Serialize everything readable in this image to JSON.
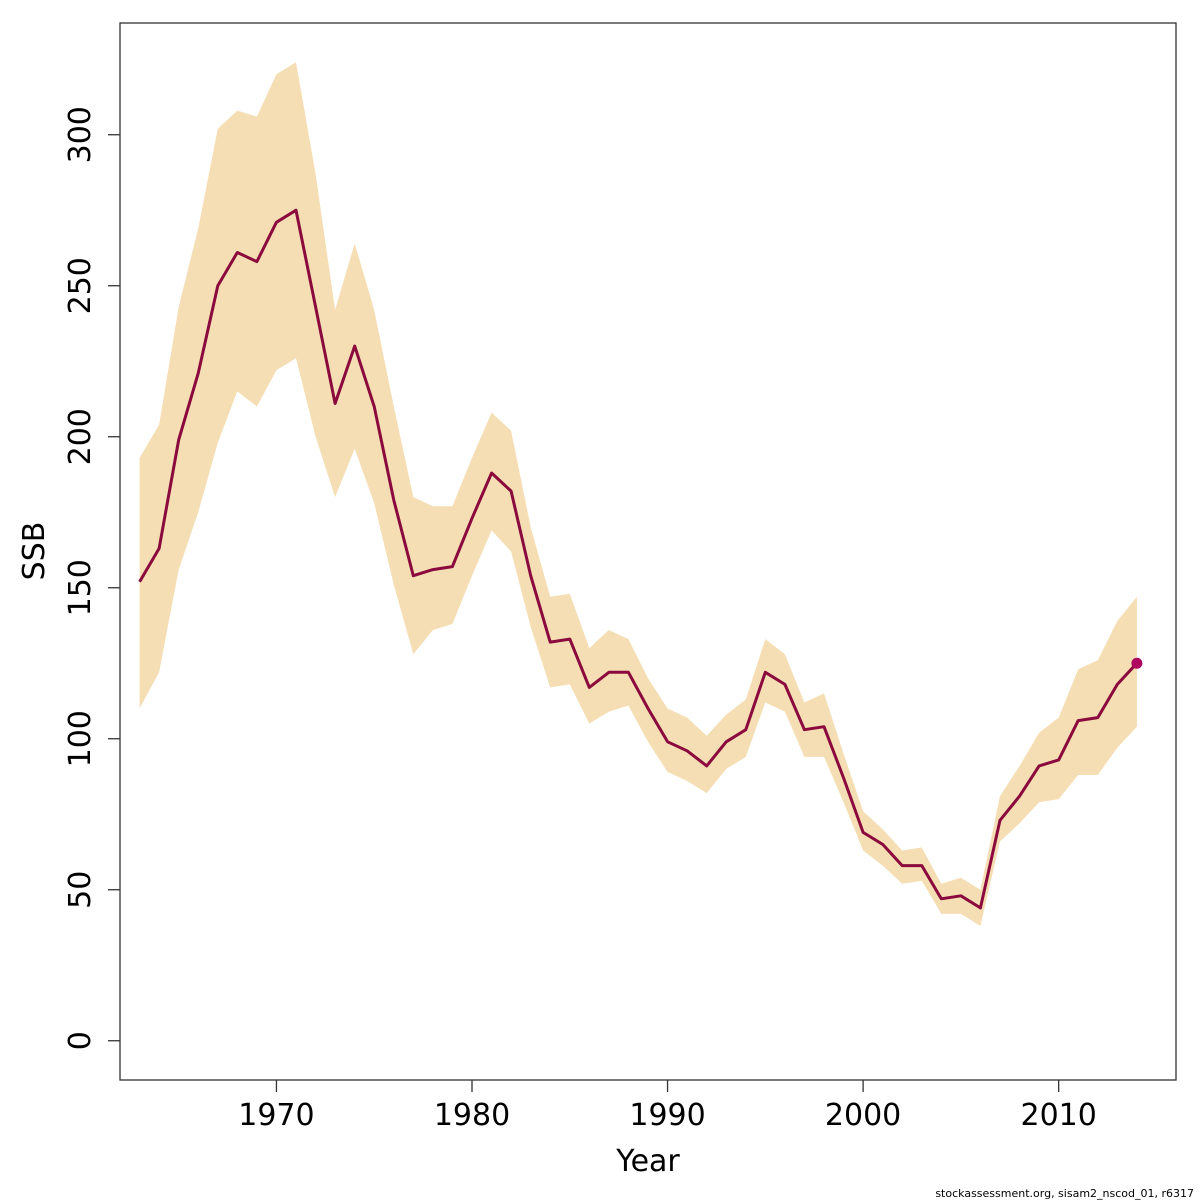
{
  "chart_data": {
    "type": "line",
    "xlabel": "Year",
    "ylabel": "SSB",
    "xlim": [
      1962,
      2016
    ],
    "ylim": [
      -13,
      337
    ],
    "x_ticks": [
      1970,
      1980,
      1990,
      2000,
      2010
    ],
    "y_ticks": [
      0,
      50,
      100,
      150,
      200,
      250,
      300
    ],
    "grid": false,
    "legend": "none",
    "colors": {
      "line": "#8b0a3e",
      "band": "#f5deb3",
      "point": "#b0065f",
      "axis": "#333333"
    },
    "series": [
      {
        "x": [
          1963,
          1964,
          1965,
          1966,
          1967,
          1968,
          1969,
          1970,
          1971,
          1972,
          1973,
          1974,
          1975,
          1976,
          1977,
          1978,
          1979,
          1980,
          1981,
          1982,
          1983,
          1984,
          1985,
          1986,
          1987,
          1988,
          1989,
          1990,
          1991,
          1992,
          1993,
          1994,
          1995,
          1996,
          1997,
          1998,
          1999,
          2000,
          2001,
          2002,
          2003,
          2004,
          2005,
          2006,
          2007,
          2008,
          2009,
          2010,
          2011,
          2012,
          2013,
          2014
        ],
        "estimate": [
          152,
          163,
          199,
          221,
          250,
          261,
          258,
          271,
          275,
          243,
          211,
          230,
          210,
          179,
          154,
          156,
          157,
          173,
          188,
          182,
          154,
          132,
          133,
          117,
          122,
          122,
          110,
          99,
          96,
          91,
          99,
          103,
          122,
          118,
          103,
          104,
          87,
          69,
          65,
          58,
          58,
          47,
          48,
          44,
          73,
          81,
          91,
          93,
          106,
          107,
          118,
          125
        ],
        "lower": [
          110,
          122,
          156,
          175,
          198,
          215,
          210,
          222,
          226,
          200,
          180,
          196,
          178,
          151,
          128,
          136,
          138,
          154,
          169,
          162,
          137,
          117,
          118,
          105,
          109,
          111,
          99,
          89,
          86,
          82,
          90,
          94,
          112,
          109,
          94,
          94,
          79,
          63,
          58,
          52,
          53,
          42,
          42,
          38,
          66,
          72,
          79,
          80,
          88,
          88,
          97,
          104
        ],
        "upper": [
          193,
          204,
          243,
          269,
          302,
          308,
          306,
          320,
          324,
          287,
          242,
          264,
          242,
          210,
          180,
          177,
          177,
          193,
          208,
          202,
          170,
          147,
          148,
          130,
          136,
          133,
          120,
          110,
          107,
          101,
          108,
          113,
          133,
          128,
          112,
          115,
          95,
          76,
          70,
          63,
          64,
          52,
          54,
          50,
          81,
          91,
          102,
          107,
          123,
          126,
          139,
          147
        ]
      }
    ],
    "last_point": {
      "x": 2014,
      "y": 125
    },
    "footer": "stockassessment.org, sisam2_nscod_01, r6317"
  }
}
